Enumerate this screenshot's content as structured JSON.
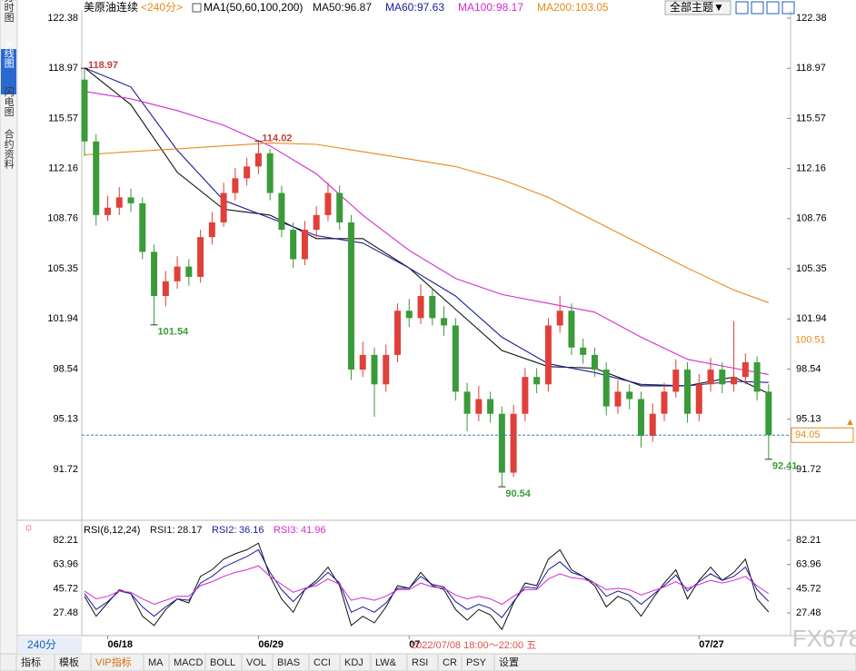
{
  "chart_data": {
    "type": "candlestick",
    "symbol": "美原油连续",
    "period": "<240分>",
    "ma_title": "MA1(50,60,100,200)",
    "theme_button": "全部主题▼",
    "side_tabs": [
      "分时图",
      "K线图",
      "闪电图",
      "合约资料"
    ],
    "period_label": "240分",
    "ylim": [
      88.45,
      122.87
    ],
    "yticks": [
      122.38,
      118.97,
      115.57,
      112.16,
      108.76,
      105.35,
      101.94,
      98.54,
      95.13,
      91.72
    ],
    "up_color": "#e0403a",
    "down_color": "#3b9b3b",
    "candles": [
      [
        118.2,
        118.97,
        113,
        114
      ],
      [
        114,
        114.5,
        108.3,
        109
      ],
      [
        109,
        110.3,
        108.6,
        109.5
      ],
      [
        109.5,
        110.9,
        109,
        110.2
      ],
      [
        110.2,
        110.8,
        109.2,
        109.8
      ],
      [
        109.8,
        110.2,
        106,
        106.5
      ],
      [
        106.5,
        107,
        101.54,
        103.5
      ],
      [
        103.5,
        105.2,
        102.8,
        104.5
      ],
      [
        104.5,
        106.2,
        104,
        105.5
      ],
      [
        105.5,
        106,
        104.2,
        104.8
      ],
      [
        104.8,
        108,
        104.4,
        107.5
      ],
      [
        107.5,
        109.2,
        107,
        108.5
      ],
      [
        108.5,
        111.2,
        108.2,
        110.5
      ],
      [
        110.5,
        112.2,
        110,
        111.5
      ],
      [
        111.5,
        112.9,
        111,
        112.3
      ],
      [
        112.3,
        114.02,
        111.8,
        113.2
      ],
      [
        113.2,
        113.5,
        110,
        110.5
      ],
      [
        110.5,
        111,
        107.5,
        108
      ],
      [
        108,
        108.5,
        105.4,
        106
      ],
      [
        106,
        108.6,
        105.6,
        108
      ],
      [
        108,
        109.6,
        107.5,
        109
      ],
      [
        109,
        111.2,
        108.6,
        110.5
      ],
      [
        110.5,
        111,
        108,
        108.5
      ],
      [
        108.5,
        109,
        97.8,
        98.5
      ],
      [
        98.5,
        100.4,
        98,
        99.5
      ],
      [
        99.5,
        100,
        95.3,
        97.5
      ],
      [
        97.5,
        100.2,
        97,
        99.5
      ],
      [
        99.5,
        103,
        99,
        102.5
      ],
      [
        102.5,
        103.3,
        101.4,
        102
      ],
      [
        102,
        104.3,
        101.6,
        103.5
      ],
      [
        103.5,
        104,
        101.5,
        102
      ],
      [
        102,
        102.8,
        100.8,
        101.5
      ],
      [
        101.5,
        102,
        96.4,
        97
      ],
      [
        97,
        97.6,
        94.3,
        95.5
      ],
      [
        95.5,
        97.4,
        95,
        96.5
      ],
      [
        96.5,
        97,
        94.9,
        95.5
      ],
      [
        95.5,
        96,
        90.54,
        91.5
      ],
      [
        91.5,
        96.1,
        91.2,
        95.5
      ],
      [
        95.5,
        98.6,
        95,
        98
      ],
      [
        98,
        98.6,
        96.9,
        97.5
      ],
      [
        97.5,
        102,
        97,
        101.5
      ],
      [
        101.5,
        103.5,
        101,
        102.5
      ],
      [
        102.5,
        103,
        99.5,
        100
      ],
      [
        100,
        100.6,
        98.9,
        99.5
      ],
      [
        99.5,
        100,
        98,
        98.5
      ],
      [
        98.5,
        99,
        95.4,
        96
      ],
      [
        96,
        97.8,
        95.5,
        97
      ],
      [
        97,
        97.5,
        95.8,
        96.5
      ],
      [
        96.5,
        97,
        93.2,
        94
      ],
      [
        94,
        96.2,
        93.6,
        95.5
      ],
      [
        95.5,
        97.6,
        95,
        97
      ],
      [
        97,
        99.2,
        96.6,
        98.5
      ],
      [
        98.5,
        99,
        94.9,
        95.5
      ],
      [
        95.5,
        98.2,
        95,
        97.5
      ],
      [
        97.5,
        99.3,
        97,
        98.5
      ],
      [
        98.5,
        99,
        96.9,
        97.5
      ],
      [
        97.5,
        101.8,
        97,
        98
      ],
      [
        98,
        99.6,
        97.5,
        99
      ],
      [
        99,
        99.4,
        96.4,
        97
      ],
      [
        97,
        97.5,
        92.41,
        94.05
      ]
    ],
    "annotations": [
      118.97,
      114.02,
      101.54,
      90.54,
      92.41
    ],
    "marker_price": 100.51,
    "ma_x": [
      0,
      4,
      8,
      12,
      16,
      20,
      24,
      28,
      32,
      36,
      40,
      44,
      48,
      52,
      56,
      59
    ],
    "ma_series": [
      {
        "name": "MA50:",
        "last_label": "96.87",
        "color": "#111111",
        "values": [
          119.0,
          116.5,
          111.9,
          109.4,
          109.0,
          107.4,
          107.4,
          105.4,
          102.6,
          99.8,
          98.7,
          98.6,
          97.4,
          97.4,
          98.0,
          96.87
        ]
      },
      {
        "name": "MA60:",
        "last_label": "97.63",
        "color": "#1c1c9c",
        "values": [
          119.0,
          117.7,
          113.4,
          110.0,
          108.8,
          107.6,
          107.1,
          105.4,
          103.5,
          100.7,
          98.9,
          98.3,
          97.5,
          97.4,
          97.7,
          97.63
        ]
      },
      {
        "name": "MA100:",
        "last_label": "98.17",
        "color": "#d22bd2",
        "values": [
          117.4,
          116.9,
          116.1,
          115.1,
          113.7,
          111.8,
          109.0,
          106.6,
          104.7,
          103.6,
          103.0,
          102.4,
          100.7,
          99.2,
          98.6,
          98.17
        ]
      },
      {
        "name": "MA200:",
        "last_label": "103.05",
        "color": "#e8891a",
        "values": [
          113.1,
          113.3,
          113.5,
          113.7,
          113.9,
          113.8,
          113.3,
          112.8,
          112.3,
          111.4,
          110.2,
          108.6,
          107.0,
          105.4,
          103.9,
          103.05
        ]
      }
    ],
    "x_labels": [
      {
        "index": 2,
        "label": "06/18"
      },
      {
        "index": 15,
        "label": "06/29"
      },
      {
        "index": 28,
        "label": "07"
      },
      {
        "index": 53,
        "label": "07/27"
      }
    ],
    "tooltip": "2022/07/08 18:00～22:00 五",
    "rsi": {
      "title": "RSI(6,12,24)",
      "ylim": [
        10.4,
        91.1
      ],
      "yticks": [
        82.21,
        63.96,
        45.72,
        27.48
      ],
      "series": [
        {
          "name": "RSI1:",
          "last_label": "28.17",
          "color": "#111111",
          "values": [
            40,
            25,
            35,
            45,
            42,
            25,
            18,
            30,
            38,
            35,
            55,
            60,
            68,
            72,
            75,
            80,
            55,
            38,
            28,
            45,
            52,
            62,
            48,
            18,
            25,
            20,
            32,
            48,
            46,
            58,
            48,
            45,
            30,
            22,
            30,
            26,
            15,
            35,
            50,
            48,
            68,
            75,
            60,
            55,
            48,
            32,
            40,
            36,
            25,
            38,
            50,
            60,
            38,
            52,
            62,
            52,
            58,
            68,
            38,
            28.17
          ]
        },
        {
          "name": "RSI2:",
          "last_label": "36.16",
          "color": "#1c1c9c",
          "values": [
            42,
            30,
            36,
            44,
            42,
            32,
            25,
            32,
            38,
            37,
            50,
            55,
            62,
            66,
            70,
            75,
            58,
            45,
            36,
            45,
            50,
            58,
            50,
            28,
            32,
            28,
            35,
            46,
            46,
            55,
            49,
            47,
            36,
            30,
            34,
            31,
            24,
            36,
            47,
            46,
            60,
            66,
            58,
            55,
            50,
            40,
            44,
            41,
            34,
            41,
            48,
            56,
            44,
            51,
            57,
            52,
            55,
            62,
            45,
            36.16
          ]
        },
        {
          "name": "RSI3:",
          "last_label": "41.96",
          "color": "#d22bd2",
          "values": [
            44,
            38,
            40,
            44,
            43,
            38,
            34,
            37,
            40,
            40,
            48,
            51,
            55,
            58,
            60,
            63,
            55,
            49,
            43,
            46,
            48,
            53,
            49,
            37,
            39,
            37,
            40,
            45,
            45,
            50,
            47,
            46,
            41,
            38,
            40,
            38,
            34,
            40,
            45,
            45,
            53,
            57,
            54,
            53,
            50,
            45,
            46,
            45,
            41,
            44,
            47,
            51,
            46,
            49,
            52,
            50,
            52,
            55,
            48,
            41.96
          ]
        }
      ]
    },
    "toolbar": [
      "指标",
      "模板",
      "VIP指标",
      "MA",
      "MACD",
      "BOLL",
      "VOL",
      "BIAS",
      "CCI",
      "KDJ",
      "LW&",
      "RSI",
      "CR",
      "PSY",
      "设置"
    ],
    "watermark": "FX678"
  }
}
